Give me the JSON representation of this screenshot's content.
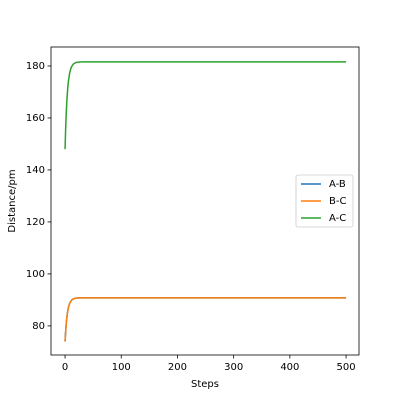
{
  "chart_data": {
    "type": "line",
    "x_label": "Steps",
    "y_label": "Distance/pm",
    "x": [
      0,
      1,
      2,
      3,
      4,
      5,
      6,
      8,
      10,
      12,
      15,
      20,
      25,
      30,
      50,
      100,
      200,
      300,
      400,
      500
    ],
    "series": [
      {
        "name": "A-B",
        "color": "#1f77b4",
        "values": [
          74,
          77.7,
          80.6,
          82.9,
          84.6,
          86.0,
          87.1,
          88.5,
          89.4,
          90.0,
          90.4,
          90.7,
          90.8,
          90.8,
          90.8,
          90.8,
          90.8,
          90.8,
          90.8,
          90.8
        ]
      },
      {
        "name": "B-C",
        "color": "#ff7f0e",
        "values": [
          74,
          77.7,
          80.6,
          82.9,
          84.6,
          86.0,
          87.1,
          88.5,
          89.4,
          90.0,
          90.4,
          90.7,
          90.8,
          90.8,
          90.8,
          90.8,
          90.8,
          90.8,
          90.8,
          90.8
        ]
      },
      {
        "name": "A-C",
        "color": "#2ca02c",
        "values": [
          148,
          155.4,
          161.2,
          165.7,
          169.2,
          172.0,
          174.1,
          177.1,
          178.8,
          179.9,
          180.8,
          181.4,
          181.5,
          181.6,
          181.6,
          181.6,
          181.6,
          181.6,
          181.6,
          181.6
        ]
      }
    ],
    "xlim": [
      -25,
      523
    ],
    "ylim": [
      68.8,
      187.3
    ],
    "xticks": [
      0,
      100,
      200,
      300,
      400,
      500
    ],
    "yticks": [
      80,
      100,
      120,
      140,
      160,
      180
    ],
    "legend": "center right"
  }
}
